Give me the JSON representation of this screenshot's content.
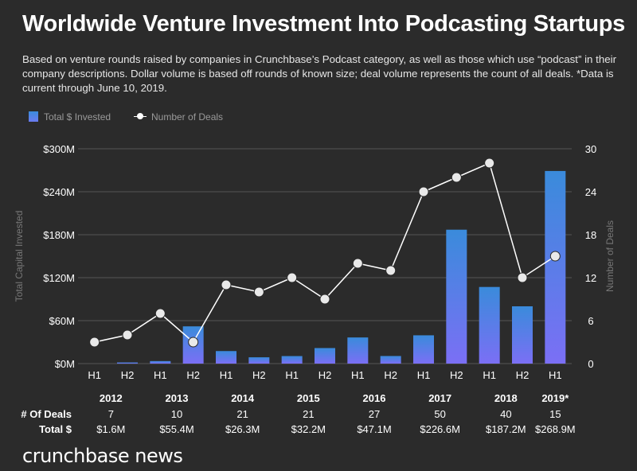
{
  "header": {
    "title": "Worldwide Venture Investment Into Podcasting Startups",
    "subtitle": "Based on venture rounds raised by companies in Crunchbase’s Podcast category, as well as those which use “podcast” in their company descriptions. Dollar volume is based off rounds of known size; deal volume represents the count of all deals. *Data is current through June 10, 2019."
  },
  "legend": {
    "bar_label": "Total $ Invested",
    "line_label": "Number of Deals"
  },
  "brand": "crunchbase news",
  "colors": {
    "background": "#2b2b2b",
    "bar_top": "#3a8bdb",
    "bar_bottom": "#7b6ff5",
    "line": "#ffffff",
    "grid": "#555555",
    "axis_label": "#777777"
  },
  "chart_data": {
    "type": "bar",
    "categories": [
      "H1",
      "H2",
      "H1",
      "H2",
      "H1",
      "H2",
      "H1",
      "H2",
      "H1",
      "H2",
      "H1",
      "H2",
      "H1",
      "H2",
      "H1"
    ],
    "series": [
      {
        "name": "Total $ Invested",
        "type": "bar",
        "values": [
          0,
          1.6,
          3.5,
          52,
          17.5,
          8.8,
          10.5,
          21.7,
          36.5,
          10.6,
          39.5,
          187,
          107,
          80,
          269
        ]
      },
      {
        "name": "Number of Deals",
        "type": "line",
        "values": [
          3,
          4,
          7,
          3,
          11,
          10,
          12,
          9,
          14,
          13,
          24,
          26,
          28,
          12,
          15
        ]
      }
    ],
    "ylabel": "Total Capital Invested",
    "ylabel_right": "Number of Deals",
    "ylim": [
      0,
      300
    ],
    "ylim_right": [
      0,
      30
    ],
    "yticks": [
      "$0M",
      "$60M",
      "$120M",
      "$180M",
      "$240M",
      "$300M"
    ],
    "yticks_right": [
      "0",
      "6",
      "12",
      "18",
      "24",
      "30"
    ],
    "grid": true,
    "legend_position": "top-left",
    "years": [
      {
        "year": "2012",
        "deals": "7",
        "total": "$1.6M"
      },
      {
        "year": "2013",
        "deals": "10",
        "total": "$55.4M"
      },
      {
        "year": "2014",
        "deals": "21",
        "total": "$26.3M"
      },
      {
        "year": "2015",
        "deals": "21",
        "total": "$32.2M"
      },
      {
        "year": "2016",
        "deals": "27",
        "total": "$47.1M"
      },
      {
        "year": "2017",
        "deals": "50",
        "total": "$226.6M"
      },
      {
        "year": "2018",
        "deals": "40",
        "total": "$187.2M"
      },
      {
        "year": "2019*",
        "deals": "15",
        "total": "$268.9M"
      }
    ],
    "table_row_labels": {
      "deals": "# Of Deals",
      "total": "Total $"
    }
  }
}
